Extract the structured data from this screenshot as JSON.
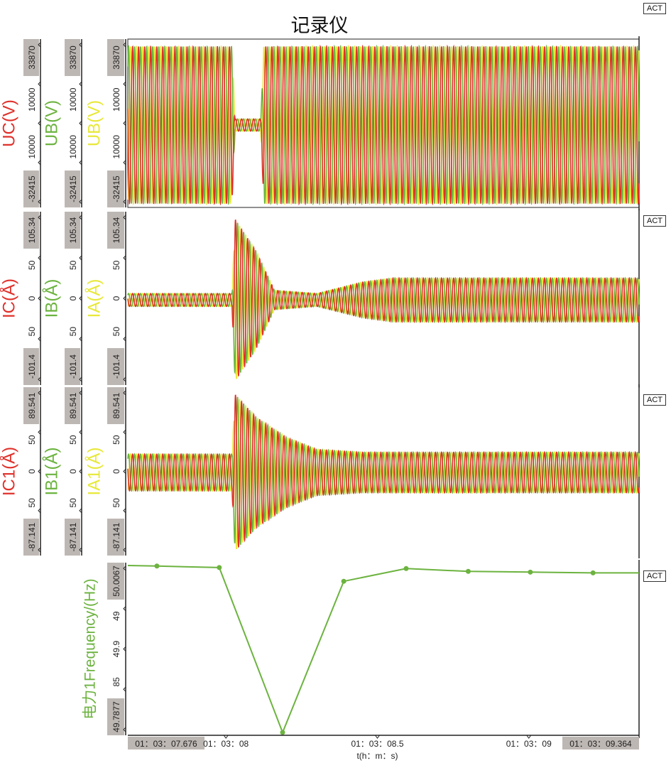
{
  "title": "记录仪",
  "act_label": "ACT",
  "colors": {
    "phaseC": "#e0302a",
    "phaseB": "#6cb33f",
    "phaseA": "#e8e83a",
    "freq": "#6cb33f",
    "label_bg": "#bdb7b3",
    "axis": "#222222"
  },
  "chart_data": {
    "type": "line",
    "xlabel": "t(h：m：s)",
    "xlim": [
      7.676,
      9.364
    ],
    "x_ticks": [
      {
        "t": 7.676,
        "label": "01：03：07.676",
        "boxed": true
      },
      {
        "t": 8.0,
        "label": "01：03：08",
        "boxed": false
      },
      {
        "t": 8.5,
        "label": "01：03：08.5",
        "boxed": false
      },
      {
        "t": 9.0,
        "label": "01：03：09",
        "boxed": false
      },
      {
        "t": 9.364,
        "label": "01：03：09.364",
        "boxed": true
      }
    ],
    "panels": [
      {
        "name": "voltage",
        "ylim": [
          -32415,
          33870
        ],
        "axes": [
          {
            "label": "UC(V)",
            "color": "#e0302a",
            "max": "33870",
            "min": "-32415",
            "mid_ticks": [
              "10000",
              "10000"
            ]
          },
          {
            "label": "UB(V)",
            "color": "#6cb33f",
            "max": "33870",
            "min": "-32415",
            "mid_ticks": [
              "10000",
              "10000"
            ]
          },
          {
            "label": "UB(V)",
            "color": "#e8e83a",
            "max": "33870",
            "min": "-32415",
            "mid_ticks": [
              "10000",
              "10000"
            ]
          }
        ],
        "frequency_hz": 50,
        "envelope": [
          [
            7.676,
            32000
          ],
          [
            8.02,
            32000
          ],
          [
            8.03,
            2500
          ],
          [
            8.115,
            2500
          ],
          [
            8.125,
            32000
          ],
          [
            9.364,
            32000
          ]
        ]
      },
      {
        "name": "current",
        "ylim": [
          -101.4,
          105.34
        ],
        "axes": [
          {
            "label": "IC(Å)",
            "color": "#e0302a",
            "max": "105.34",
            "min": "-101.4",
            "mid_ticks": [
              "50",
              "0",
              "50"
            ]
          },
          {
            "label": "IB(Å)",
            "color": "#6cb33f",
            "max": "105.34",
            "min": "-101.4",
            "mid_ticks": [
              "50",
              "0",
              "50"
            ]
          },
          {
            "label": "IA(Å)",
            "color": "#e8e83a",
            "max": "105.34",
            "min": "-101.4",
            "mid_ticks": [
              "50",
              "0",
              "50"
            ]
          }
        ],
        "frequency_hz": 50,
        "envelope": [
          [
            7.676,
            8
          ],
          [
            8.02,
            8
          ],
          [
            8.03,
            100
          ],
          [
            8.1,
            60
          ],
          [
            8.16,
            12
          ],
          [
            8.3,
            8
          ],
          [
            8.45,
            22
          ],
          [
            8.55,
            27
          ],
          [
            9.364,
            27
          ]
        ]
      },
      {
        "name": "current1",
        "ylim": [
          -87.141,
          89.541
        ],
        "axes": [
          {
            "label": "IC1(Å)",
            "color": "#e0302a",
            "max": "89.541",
            "min": "-87.141",
            "mid_ticks": [
              "50",
              "0",
              "50"
            ]
          },
          {
            "label": "IB1(Å)",
            "color": "#6cb33f",
            "max": "89.541",
            "min": "-87.141",
            "mid_ticks": [
              "50",
              "0",
              "50"
            ]
          },
          {
            "label": "IA1(Å)",
            "color": "#e8e83a",
            "max": "89.541",
            "min": "-87.141",
            "mid_ticks": [
              "50",
              "0",
              "50"
            ]
          }
        ],
        "frequency_hz": 50,
        "envelope": [
          [
            7.676,
            20
          ],
          [
            8.02,
            20
          ],
          [
            8.03,
            85
          ],
          [
            8.1,
            60
          ],
          [
            8.2,
            38
          ],
          [
            8.3,
            25
          ],
          [
            8.45,
            22
          ],
          [
            9.364,
            22
          ]
        ]
      },
      {
        "name": "frequency",
        "ylim": [
          49.7877,
          50.0067
        ],
        "axes": [
          {
            "label": "电力1Frequency/(Hz)",
            "color": "#6cb33f",
            "max": "50.0067",
            "min": "49.7877",
            "mid_ticks": [
              "49",
              "49.9",
              "85"
            ]
          }
        ],
        "series": [
          {
            "name": "电力1Frequency",
            "x": [
              7.676,
              7.772,
              7.978,
              8.187,
              8.389,
              8.595,
              8.8,
              9.005,
              9.212,
              9.364
            ],
            "y": [
              50.0067,
              50.006,
              50.004,
              49.7877,
              49.986,
              50.0027,
              49.999,
              49.998,
              49.997,
              49.997
            ]
          }
        ]
      }
    ]
  }
}
